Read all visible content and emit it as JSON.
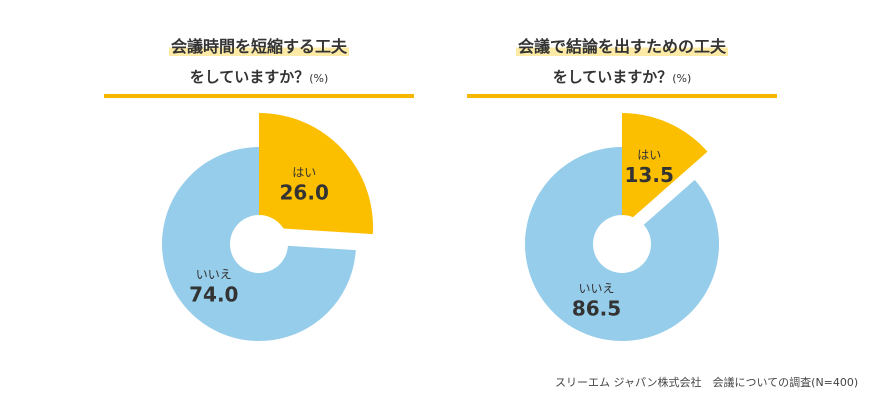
{
  "charts": [
    {
      "title_line1": "会議時間を短縮する工夫",
      "title_line2": "をしていますか？",
      "unit": "(%)"
    },
    {
      "title_line1": "会議で結論を出すための工夫",
      "title_line2": "をしていますか？",
      "unit": "(%)"
    }
  ],
  "colors": {
    "yes": "#fbbf00",
    "no": "#96cdea",
    "rule": "#f5b700",
    "text": "#333333"
  },
  "footnote": "スリーエム ジャパン株式会社　会議についての調査(N=400)",
  "chart_data": [
    {
      "type": "pie",
      "title": "会議時間を短縮する工夫をしていますか？(%)",
      "categories": [
        "はい",
        "いいえ"
      ],
      "values": [
        26.0,
        74.0
      ],
      "labels": [
        "26.0",
        "74.0"
      ]
    },
    {
      "type": "pie",
      "title": "会議で結論を出すための工夫をしていますか？(%)",
      "categories": [
        "はい",
        "いいえ"
      ],
      "values": [
        13.5,
        86.5
      ],
      "labels": [
        "13.5",
        "86.5"
      ]
    }
  ]
}
